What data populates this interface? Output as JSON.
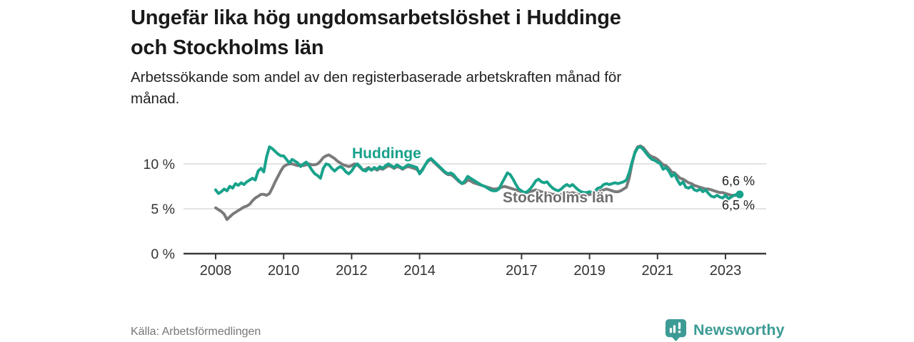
{
  "header": {
    "title": "Ungefär lika hög ungdomsarbetslöshet i Huddinge och Stockholms län",
    "title_lines": [
      "Ungefär lika hög ungdomsarbetslöshet i Huddinge",
      "och Stockholms län"
    ],
    "subtitle": "Arbetssökande som andel av den registerbaserade arbetskraften månad för månad.",
    "subtitle_lines": [
      "Arbetssökande som andel av den registerbaserade arbetskraften månad för",
      "månad."
    ]
  },
  "chart_data": {
    "type": "line",
    "unit": "%",
    "x_frequency": "monthly",
    "x_start": "2008-01",
    "x_end": "2023-05",
    "ylim": [
      0,
      13
    ],
    "grid": "horizontal",
    "legend_position": "inline-labels",
    "x_ticks": [
      2008,
      2010,
      2012,
      2014,
      2017,
      2019,
      2021,
      2023
    ],
    "x_tick_labels": [
      "2008",
      "2010",
      "2012",
      "2014",
      "2017",
      "2019",
      "2021",
      "2023"
    ],
    "y_ticks": [
      {
        "value": 0,
        "label": "0 %"
      },
      {
        "value": 5,
        "label": "5 %"
      },
      {
        "value": 10,
        "label": "10 %"
      }
    ],
    "series": [
      {
        "name": "Stockholms län",
        "color": "#7a7a7a",
        "end_label": "6,5 %",
        "latest_value": 6.5,
        "end_dot": false,
        "values": [
          5.1,
          4.9,
          4.7,
          4.4,
          3.8,
          4.1,
          4.4,
          4.6,
          4.8,
          5.0,
          5.2,
          5.3,
          5.5,
          5.9,
          6.2,
          6.4,
          6.6,
          6.6,
          6.5,
          6.7,
          7.3,
          8.0,
          8.6,
          9.2,
          9.7,
          9.9,
          10.0,
          10.0,
          9.9,
          9.8,
          9.9,
          9.8,
          9.9,
          10.0,
          9.9,
          9.9,
          10.0,
          10.3,
          10.7,
          10.9,
          11.0,
          10.8,
          10.6,
          10.3,
          10.1,
          9.9,
          9.8,
          9.7,
          9.8,
          10.0,
          9.9,
          9.6,
          9.3,
          9.4,
          9.6,
          9.3,
          9.5,
          9.3,
          9.5,
          9.4,
          9.6,
          9.8,
          9.7,
          9.5,
          9.7,
          9.6,
          9.4,
          9.6,
          9.7,
          9.6,
          9.5,
          9.4,
          9.0,
          9.4,
          9.9,
          10.3,
          10.5,
          10.2,
          9.9,
          9.6,
          9.3,
          9.0,
          8.8,
          8.8,
          8.6,
          8.3,
          8.0,
          7.8,
          7.9,
          8.2,
          8.1,
          7.9,
          7.8,
          7.7,
          7.6,
          7.5,
          7.4,
          7.3,
          7.2,
          7.2,
          7.3,
          7.4,
          7.5,
          7.4,
          7.3,
          7.2,
          7.1,
          7.0,
          6.9,
          6.8,
          6.8,
          6.9,
          7.0,
          7.1,
          7.0,
          6.9,
          6.8,
          6.8,
          6.7,
          6.6,
          6.6,
          6.5,
          6.6,
          6.7,
          6.8,
          6.7,
          6.8,
          6.7,
          6.6,
          6.5,
          6.5,
          6.5,
          6.6,
          6.6,
          6.7,
          6.9,
          7.0,
          7.1,
          7.2,
          7.1,
          7.0,
          6.9,
          6.9,
          7.0,
          7.2,
          7.4,
          8.4,
          10.0,
          11.3,
          11.9,
          12.0,
          11.8,
          11.4,
          11.0,
          10.8,
          10.7,
          10.5,
          10.2,
          9.9,
          9.8,
          9.5,
          9.1,
          9.0,
          8.7,
          8.4,
          8.3,
          8.1,
          7.9,
          7.8,
          7.6,
          7.5,
          7.4,
          7.3,
          7.2,
          7.2,
          7.1,
          7.0,
          6.9,
          6.8,
          6.8,
          6.7,
          6.6,
          6.5,
          6.5,
          6.5
        ]
      },
      {
        "name": "Huddinge",
        "color": "#19a28b",
        "end_label": "6,6 %",
        "latest_value": 6.6,
        "end_dot": true,
        "values": [
          7.1,
          6.7,
          6.9,
          7.2,
          7.0,
          7.5,
          7.3,
          7.8,
          7.6,
          7.9,
          7.7,
          8.0,
          8.2,
          8.4,
          8.2,
          9.2,
          9.5,
          9.1,
          10.8,
          11.9,
          11.7,
          11.4,
          11.1,
          10.9,
          10.9,
          10.5,
          10.1,
          10.5,
          10.3,
          10.1,
          9.7,
          10.0,
          10.2,
          9.8,
          9.3,
          8.9,
          8.7,
          8.4,
          9.5,
          10.0,
          9.9,
          9.5,
          9.2,
          9.5,
          9.7,
          9.5,
          9.1,
          8.9,
          9.2,
          9.7,
          10.0,
          9.7,
          9.3,
          9.2,
          9.5,
          9.3,
          9.6,
          9.4,
          9.7,
          9.5,
          9.8,
          10.0,
          9.8,
          9.6,
          9.9,
          9.7,
          9.5,
          9.7,
          9.9,
          9.8,
          9.7,
          9.6,
          8.9,
          9.3,
          9.9,
          10.4,
          10.6,
          10.3,
          10.0,
          9.7,
          9.4,
          9.1,
          8.9,
          9.0,
          8.8,
          8.4,
          8.1,
          7.8,
          8.1,
          8.6,
          8.4,
          8.2,
          8.0,
          7.8,
          7.6,
          7.5,
          7.3,
          7.1,
          7.0,
          7.0,
          7.2,
          7.8,
          8.4,
          9.0,
          8.8,
          8.3,
          7.7,
          7.2,
          7.0,
          6.8,
          6.9,
          7.2,
          7.6,
          8.1,
          8.3,
          8.0,
          7.9,
          8.0,
          7.6,
          7.3,
          7.1,
          7.0,
          7.2,
          7.5,
          7.7,
          7.5,
          7.7,
          7.4,
          7.1,
          6.9,
          6.8,
          6.8,
          6.9,
          6.8,
          7.0,
          7.3,
          7.4,
          7.7,
          7.8,
          7.7,
          7.8,
          7.9,
          7.8,
          7.9,
          8.0,
          8.2,
          9.0,
          10.2,
          11.2,
          11.8,
          11.9,
          11.6,
          11.2,
          10.8,
          10.5,
          10.4,
          10.2,
          10.0,
          9.4,
          9.6,
          9.2,
          8.6,
          8.9,
          8.2,
          7.7,
          8.0,
          7.4,
          7.3,
          7.5,
          7.1,
          7.0,
          7.2,
          6.9,
          7.1,
          6.7,
          6.4,
          6.3,
          6.5,
          6.3,
          6.2,
          6.5,
          6.1,
          6.3,
          6.5,
          6.6
        ]
      }
    ]
  },
  "footer": {
    "source": "Källa: Arbetsförmedlingen",
    "brand": "Newsworthy"
  },
  "colors": {
    "huddinge": "#19a28b",
    "stockholm_line": "#7a7a7a",
    "stockholm_label": "#6e6e6e",
    "brand_teal": "#3d9b95",
    "grid": "#dcdcdc",
    "axis": "#3a3a3a",
    "tick_text": "#333333",
    "title_text": "#1a1a1a",
    "muted_text": "#767676"
  }
}
